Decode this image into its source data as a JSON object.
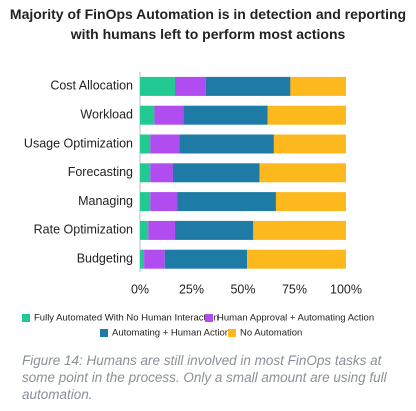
{
  "chart_data": {
    "type": "stacked_barh",
    "title": "Majority of FinOps Automation is in detection and reporting with humans left to perform most actions",
    "categories": [
      "Cost Allocation",
      "Workload",
      "Usage Optimization",
      "Forecasting",
      "Managing",
      "Rate Optimization",
      "Budgeting"
    ],
    "series": [
      {
        "name": "Fully Automated With No Human Interaction",
        "color": "#22c993",
        "values": [
          17,
          7,
          5,
          5,
          5,
          4,
          2
        ]
      },
      {
        "name": "Human Approval + Automating Action",
        "color": "#b04cf0",
        "values": [
          15,
          14,
          14,
          11,
          13,
          13,
          10
        ]
      },
      {
        "name": "Automating + Human Action",
        "color": "#1d7ba6",
        "values": [
          41,
          41,
          46,
          42,
          48,
          38,
          40
        ]
      },
      {
        "name": "No Automation",
        "color": "#fdb81e",
        "values": [
          27,
          38,
          35,
          42,
          34,
          45,
          48
        ]
      }
    ],
    "xlim": [
      0,
      100
    ],
    "xticks": [
      {
        "value": 0,
        "label": "0%"
      },
      {
        "value": 25,
        "label": "25%"
      },
      {
        "value": 50,
        "label": "50%"
      },
      {
        "value": 75,
        "label": "75%"
      },
      {
        "value": 100,
        "label": "100%"
      }
    ],
    "caption": "Figure 14: Humans are still involved in most FinOps tasks at some point in the process. Only a small amount are using full automation."
  }
}
